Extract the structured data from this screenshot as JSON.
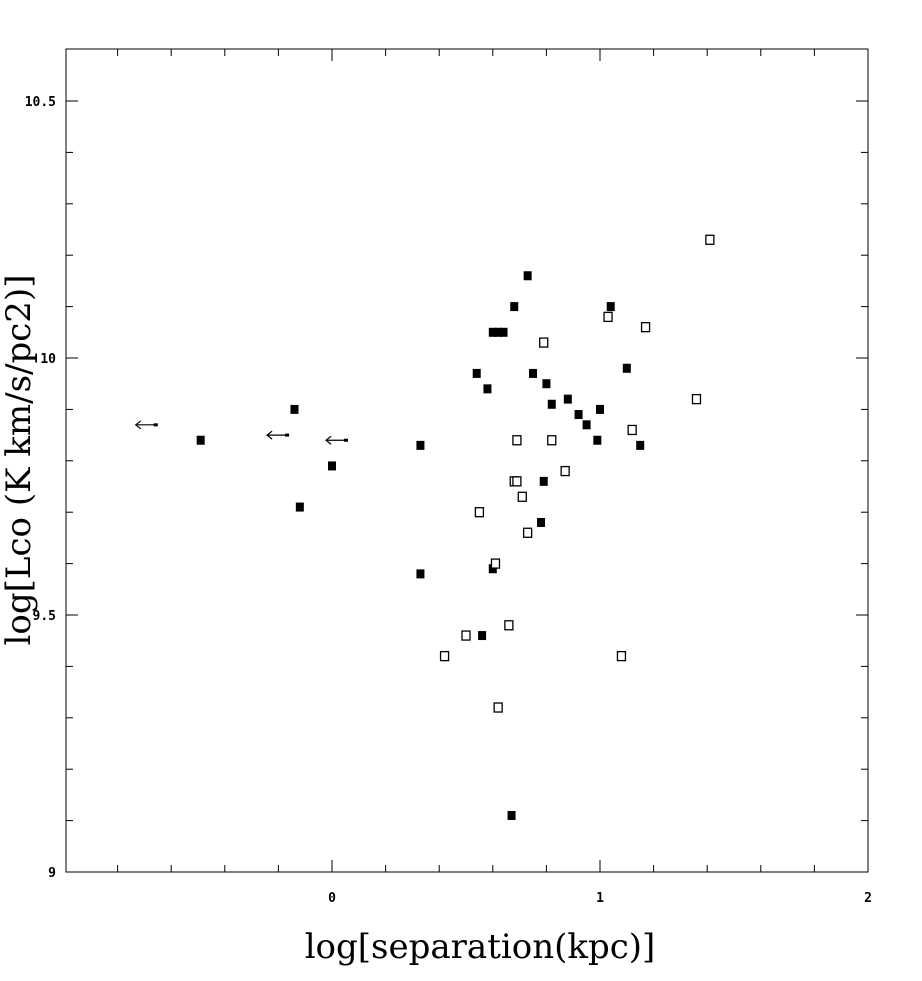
{
  "chart_data": {
    "type": "scatter",
    "title": "",
    "xlabel": "log[separation(kpc)]",
    "ylabel": "log[Lco (K km/s/pc2)]",
    "xlim": [
      -0.8,
      2.0
    ],
    "ylim": [
      9.0,
      10.6
    ],
    "x_ticks": [
      {
        "value": 0,
        "label": "0"
      },
      {
        "value": 1,
        "label": "1"
      },
      {
        "value": 2,
        "label": "2"
      }
    ],
    "y_ticks": [
      {
        "value": 9.0,
        "label": "9"
      },
      {
        "value": 9.5,
        "label": "9.5"
      },
      {
        "value": 10.0,
        "label": "10"
      },
      {
        "value": 10.5,
        "label": "10.5"
      }
    ],
    "grid": false,
    "legend": "none",
    "colors": {
      "marker": "#000000",
      "axes": "#000000",
      "background": "#ffffff"
    },
    "series": [
      {
        "marker": "filled-square",
        "points": [
          {
            "x": -0.49,
            "y": 9.84
          },
          {
            "x": -0.14,
            "y": 9.9
          },
          {
            "x": -0.12,
            "y": 9.71
          },
          {
            "x": 0.0,
            "y": 9.79
          },
          {
            "x": 0.33,
            "y": 9.83
          },
          {
            "x": 0.33,
            "y": 9.58
          },
          {
            "x": 0.54,
            "y": 9.97
          },
          {
            "x": 0.58,
            "y": 9.94
          },
          {
            "x": 0.6,
            "y": 10.05
          },
          {
            "x": 0.62,
            "y": 10.05
          },
          {
            "x": 0.64,
            "y": 10.05
          },
          {
            "x": 0.6,
            "y": 9.59
          },
          {
            "x": 0.56,
            "y": 9.46
          },
          {
            "x": 0.67,
            "y": 9.11
          },
          {
            "x": 0.68,
            "y": 10.1
          },
          {
            "x": 0.73,
            "y": 10.16
          },
          {
            "x": 0.75,
            "y": 9.97
          },
          {
            "x": 0.8,
            "y": 9.95
          },
          {
            "x": 0.82,
            "y": 9.91
          },
          {
            "x": 0.79,
            "y": 9.76
          },
          {
            "x": 0.78,
            "y": 9.68
          },
          {
            "x": 0.88,
            "y": 9.92
          },
          {
            "x": 0.92,
            "y": 9.89
          },
          {
            "x": 0.95,
            "y": 9.87
          },
          {
            "x": 0.99,
            "y": 9.84
          },
          {
            "x": 1.0,
            "y": 9.9
          },
          {
            "x": 1.04,
            "y": 10.1
          },
          {
            "x": 1.1,
            "y": 9.98
          },
          {
            "x": 1.15,
            "y": 9.83
          }
        ]
      },
      {
        "marker": "open-square",
        "points": [
          {
            "x": 0.42,
            "y": 9.42
          },
          {
            "x": 0.5,
            "y": 9.46
          },
          {
            "x": 0.55,
            "y": 9.7
          },
          {
            "x": 0.61,
            "y": 9.6
          },
          {
            "x": 0.62,
            "y": 9.32
          },
          {
            "x": 0.66,
            "y": 9.48
          },
          {
            "x": 0.68,
            "y": 9.76
          },
          {
            "x": 0.69,
            "y": 9.76
          },
          {
            "x": 0.69,
            "y": 9.84
          },
          {
            "x": 0.71,
            "y": 9.73
          },
          {
            "x": 0.73,
            "y": 9.66
          },
          {
            "x": 0.79,
            "y": 10.03
          },
          {
            "x": 0.82,
            "y": 9.84
          },
          {
            "x": 0.87,
            "y": 9.78
          },
          {
            "x": 1.03,
            "y": 10.08
          },
          {
            "x": 1.08,
            "y": 9.42
          },
          {
            "x": 1.12,
            "y": 9.86
          },
          {
            "x": 1.17,
            "y": 10.06
          },
          {
            "x": 1.36,
            "y": 9.92
          },
          {
            "x": 1.41,
            "y": 10.23
          }
        ]
      },
      {
        "marker": "upper-limit-arrow-left",
        "points": [
          {
            "x": -0.68,
            "y": 9.87
          },
          {
            "x": -0.19,
            "y": 9.85
          },
          {
            "x": 0.03,
            "y": 9.84
          }
        ]
      }
    ]
  }
}
